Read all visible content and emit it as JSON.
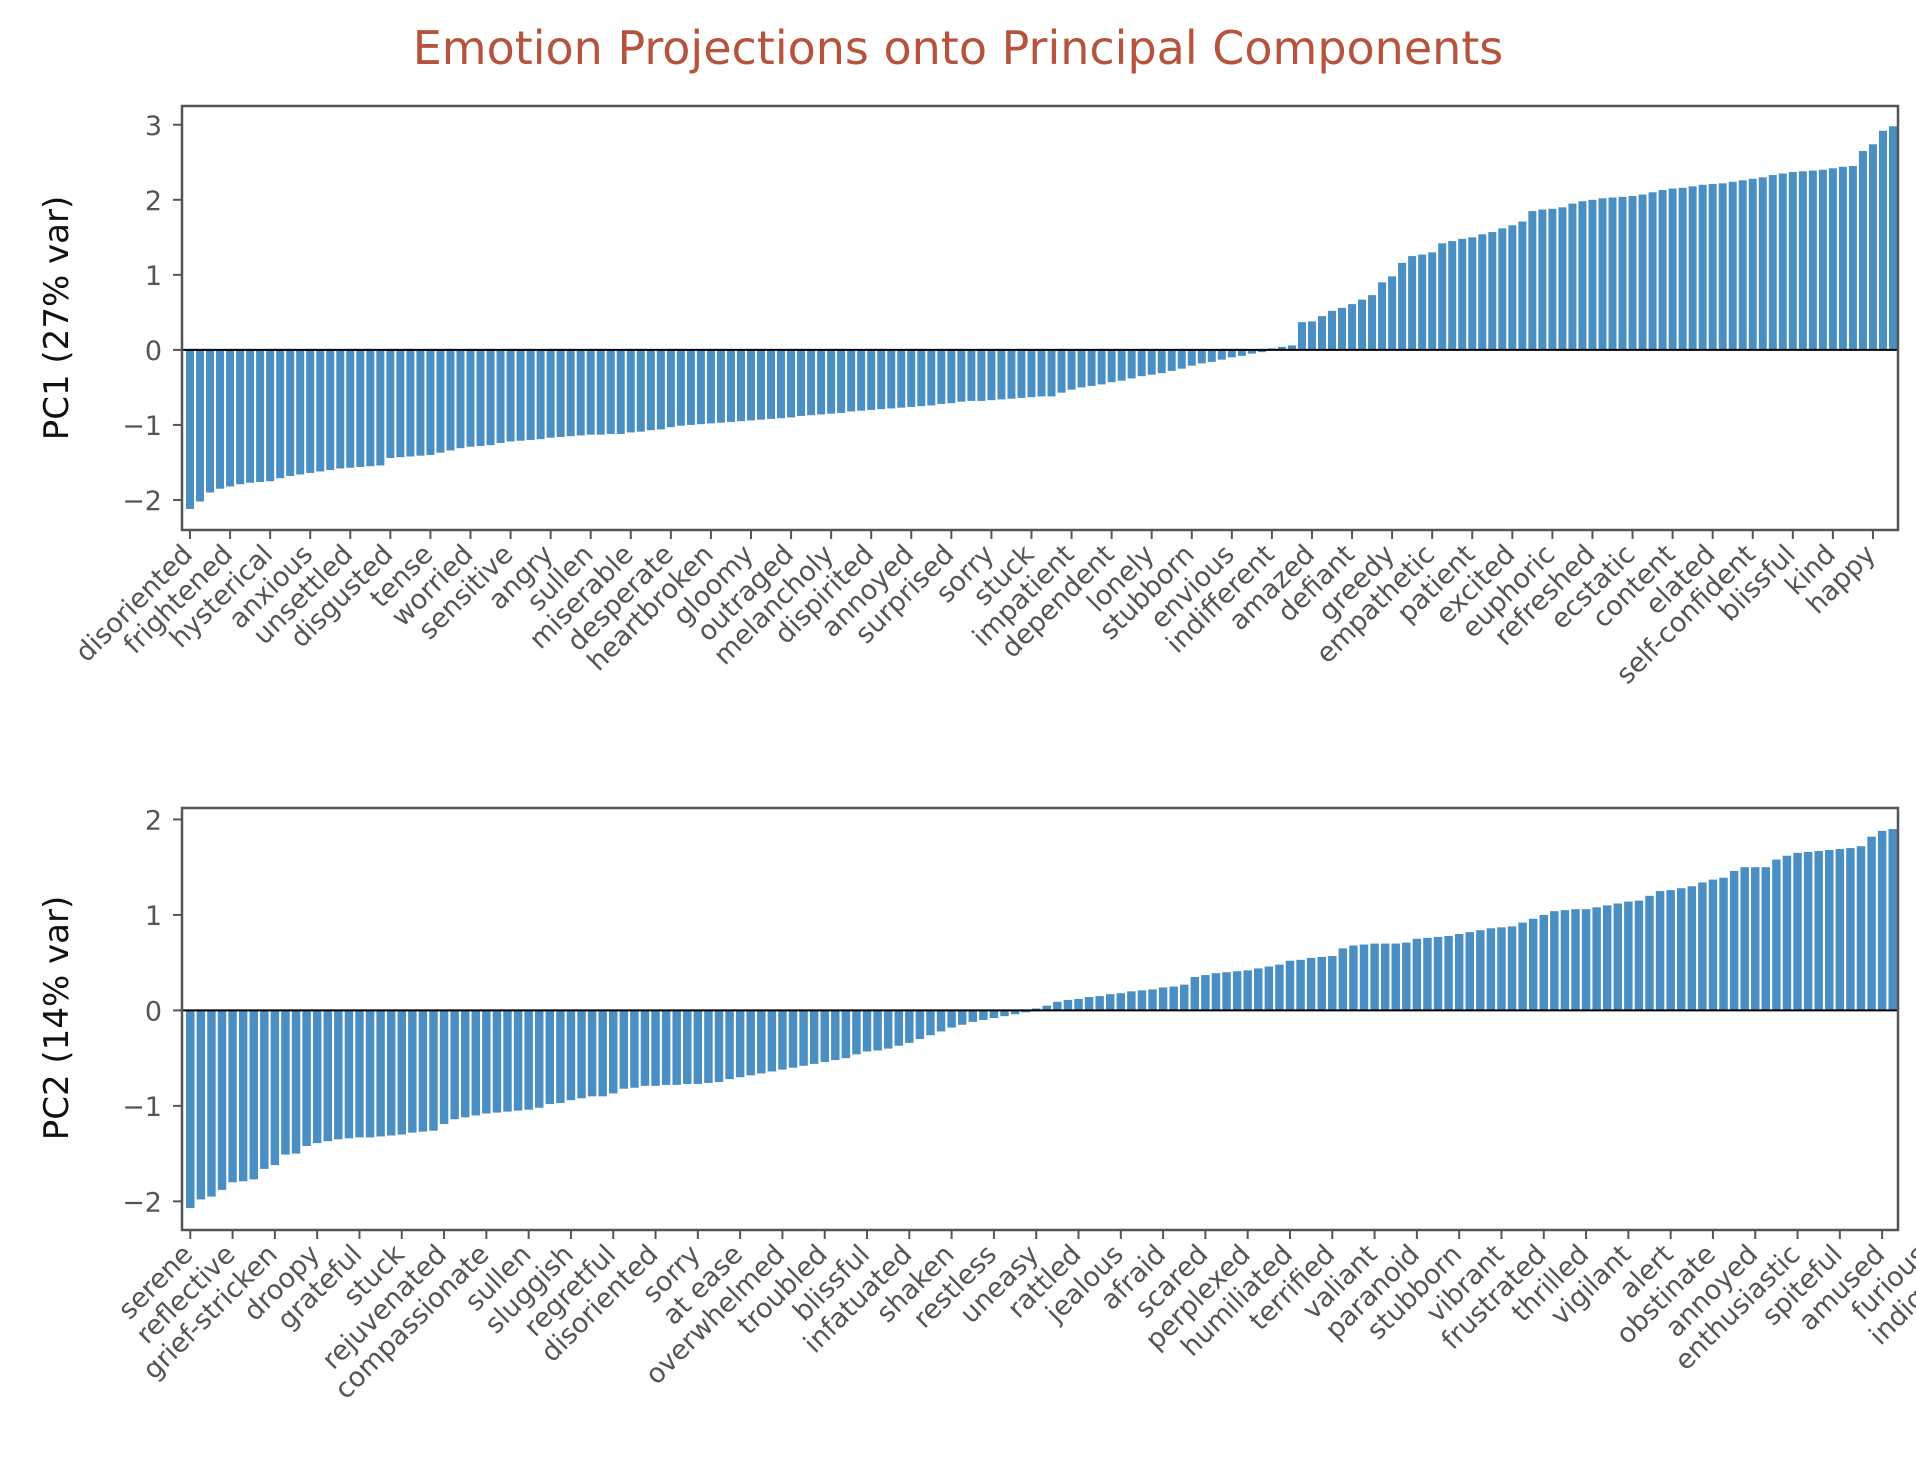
{
  "title": "Emotion Projections onto Principal Components",
  "colors": {
    "bar": "#4A8FC3",
    "title": "#B5533C",
    "axis": "#555555",
    "zero_line": "#000000"
  },
  "chart_data": [
    {
      "type": "bar",
      "ylabel": "PC1 (27% var)",
      "xlabel": "",
      "ylim": [
        -2.4,
        3.25
      ],
      "yticks": [
        -2,
        -1,
        0,
        1,
        2,
        3
      ],
      "grid": false,
      "sorted": "ascending",
      "tick_labels": [
        "disoriented",
        "frightened",
        "hysterical",
        "anxious",
        "unsettled",
        "disgusted",
        "tense",
        "worried",
        "sensitive",
        "angry",
        "sullen",
        "miserable",
        "desperate",
        "heartbroken",
        "gloomy",
        "outraged",
        "melancholy",
        "dispirited",
        "annoyed",
        "surprised",
        "sorry",
        "stuck",
        "impatient",
        "dependent",
        "lonely",
        "stubborn",
        "envious",
        "indifferent",
        "amazed",
        "defiant",
        "greedy",
        "empathetic",
        "patient",
        "excited",
        "euphoric",
        "refreshed",
        "ecstatic",
        "content",
        "elated",
        "self-confident",
        "blissful",
        "kind",
        "happy"
      ],
      "values": [
        -2.12,
        -2.02,
        -1.9,
        -1.85,
        -1.82,
        -1.79,
        -1.77,
        -1.76,
        -1.75,
        -1.71,
        -1.68,
        -1.66,
        -1.64,
        -1.62,
        -1.6,
        -1.58,
        -1.57,
        -1.56,
        -1.55,
        -1.54,
        -1.44,
        -1.43,
        -1.42,
        -1.41,
        -1.4,
        -1.37,
        -1.34,
        -1.31,
        -1.29,
        -1.28,
        -1.27,
        -1.24,
        -1.22,
        -1.21,
        -1.2,
        -1.19,
        -1.17,
        -1.16,
        -1.15,
        -1.14,
        -1.13,
        -1.13,
        -1.12,
        -1.12,
        -1.1,
        -1.09,
        -1.07,
        -1.06,
        -1.03,
        -1.01,
        -1.0,
        -0.99,
        -0.98,
        -0.97,
        -0.96,
        -0.95,
        -0.94,
        -0.93,
        -0.92,
        -0.91,
        -0.9,
        -0.88,
        -0.87,
        -0.86,
        -0.85,
        -0.84,
        -0.82,
        -0.81,
        -0.8,
        -0.79,
        -0.78,
        -0.77,
        -0.76,
        -0.75,
        -0.74,
        -0.72,
        -0.71,
        -0.69,
        -0.68,
        -0.68,
        -0.67,
        -0.66,
        -0.65,
        -0.64,
        -0.63,
        -0.62,
        -0.62,
        -0.57,
        -0.53,
        -0.5,
        -0.48,
        -0.46,
        -0.43,
        -0.41,
        -0.38,
        -0.35,
        -0.33,
        -0.31,
        -0.28,
        -0.25,
        -0.21,
        -0.18,
        -0.16,
        -0.13,
        -0.1,
        -0.08,
        -0.05,
        -0.03,
        0.02,
        0.04,
        0.06,
        0.37,
        0.38,
        0.45,
        0.52,
        0.56,
        0.61,
        0.67,
        0.73,
        0.9,
        0.98,
        1.16,
        1.25,
        1.27,
        1.3,
        1.42,
        1.45,
        1.48,
        1.5,
        1.54,
        1.57,
        1.62,
        1.66,
        1.71,
        1.85,
        1.87,
        1.88,
        1.9,
        1.95,
        1.98,
        2.0,
        2.02,
        2.03,
        2.04,
        2.05,
        2.07,
        2.1,
        2.13,
        2.15,
        2.16,
        2.18,
        2.2,
        2.21,
        2.22,
        2.24,
        2.26,
        2.28,
        2.3,
        2.33,
        2.35,
        2.37,
        2.38,
        2.39,
        2.4,
        2.42,
        2.44,
        2.45,
        2.65,
        2.74,
        2.92,
        2.98
      ]
    },
    {
      "type": "bar",
      "ylabel": "PC2 (14% var)",
      "xlabel": "",
      "ylim": [
        -2.3,
        2.12
      ],
      "yticks": [
        -2,
        -1,
        0,
        1,
        2
      ],
      "grid": false,
      "sorted": "ascending",
      "tick_labels": [
        "serene",
        "reflective",
        "grief-stricken",
        "droopy",
        "grateful",
        "stuck",
        "rejuvenated",
        "compassionate",
        "sullen",
        "sluggish",
        "regretful",
        "disoriented",
        "sorry",
        "at ease",
        "overwhelmed",
        "troubled",
        "blissful",
        "infatuated",
        "shaken",
        "restless",
        "uneasy",
        "rattled",
        "jealous",
        "afraid",
        "scared",
        "perplexed",
        "humiliated",
        "terrified",
        "valiant",
        "paranoid",
        "stubborn",
        "vibrant",
        "frustrated",
        "thrilled",
        "vigilant",
        "alert",
        "obstinate",
        "annoyed",
        "enthusiastic",
        "spiteful",
        "amused",
        "furious",
        "indignant"
      ],
      "values": [
        -2.07,
        -1.98,
        -1.95,
        -1.88,
        -1.8,
        -1.79,
        -1.77,
        -1.66,
        -1.62,
        -1.51,
        -1.5,
        -1.42,
        -1.39,
        -1.37,
        -1.35,
        -1.34,
        -1.33,
        -1.33,
        -1.32,
        -1.31,
        -1.3,
        -1.28,
        -1.27,
        -1.26,
        -1.19,
        -1.14,
        -1.12,
        -1.1,
        -1.08,
        -1.07,
        -1.06,
        -1.05,
        -1.04,
        -1.02,
        -0.98,
        -0.97,
        -0.94,
        -0.92,
        -0.9,
        -0.9,
        -0.87,
        -0.82,
        -0.81,
        -0.79,
        -0.79,
        -0.78,
        -0.78,
        -0.77,
        -0.77,
        -0.76,
        -0.75,
        -0.72,
        -0.7,
        -0.68,
        -0.66,
        -0.64,
        -0.62,
        -0.6,
        -0.58,
        -0.56,
        -0.54,
        -0.52,
        -0.5,
        -0.46,
        -0.43,
        -0.42,
        -0.4,
        -0.37,
        -0.34,
        -0.3,
        -0.26,
        -0.22,
        -0.18,
        -0.15,
        -0.12,
        -0.1,
        -0.08,
        -0.06,
        -0.04,
        -0.02,
        0.02,
        0.05,
        0.09,
        0.11,
        0.12,
        0.14,
        0.15,
        0.17,
        0.18,
        0.2,
        0.21,
        0.22,
        0.24,
        0.25,
        0.27,
        0.35,
        0.37,
        0.39,
        0.4,
        0.41,
        0.42,
        0.44,
        0.46,
        0.48,
        0.52,
        0.53,
        0.55,
        0.56,
        0.57,
        0.65,
        0.68,
        0.69,
        0.7,
        0.7,
        0.7,
        0.71,
        0.75,
        0.76,
        0.77,
        0.78,
        0.8,
        0.82,
        0.84,
        0.86,
        0.87,
        0.88,
        0.92,
        0.96,
        1.0,
        1.04,
        1.05,
        1.06,
        1.06,
        1.08,
        1.1,
        1.12,
        1.14,
        1.15,
        1.2,
        1.25,
        1.26,
        1.28,
        1.3,
        1.34,
        1.37,
        1.39,
        1.46,
        1.5,
        1.5,
        1.5,
        1.58,
        1.62,
        1.65,
        1.66,
        1.67,
        1.68,
        1.69,
        1.7,
        1.72,
        1.82,
        1.88,
        1.9
      ]
    }
  ]
}
